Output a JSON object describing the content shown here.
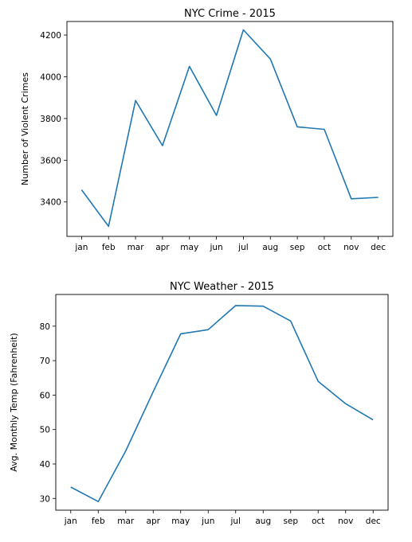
{
  "chart_data": [
    {
      "type": "line",
      "title": "NYC Crime - 2015",
      "xlabel": "",
      "ylabel": "Number of Violent Crimes",
      "categories": [
        "jan",
        "feb",
        "mar",
        "apr",
        "may",
        "jun",
        "jul",
        "aug",
        "sep",
        "oct",
        "nov",
        "dec"
      ],
      "values": [
        3458,
        3283,
        3886,
        3670,
        4050,
        3815,
        4225,
        4085,
        3760,
        3748,
        3415,
        3422
      ],
      "yticks": [
        3400,
        3600,
        3800,
        4000,
        4200
      ],
      "ylim": [
        3235,
        4265
      ],
      "grid": false,
      "color": "#1f77b4"
    },
    {
      "type": "line",
      "title": "NYC Weather - 2015",
      "xlabel": "",
      "ylabel": "Avg. Monthly Temp (Fahrenheit)",
      "categories": [
        "jan",
        "feb",
        "mar",
        "apr",
        "may",
        "jun",
        "jul",
        "aug",
        "sep",
        "oct",
        "nov",
        "dec"
      ],
      "values": [
        33.3,
        29.1,
        43.8,
        61.0,
        77.8,
        79.0,
        86.0,
        85.8,
        81.5,
        64.0,
        57.5,
        52.8
      ],
      "yticks": [
        30,
        40,
        50,
        60,
        70,
        80
      ],
      "ylim": [
        26.6,
        89.2
      ],
      "grid": false,
      "color": "#1f77b4"
    }
  ]
}
